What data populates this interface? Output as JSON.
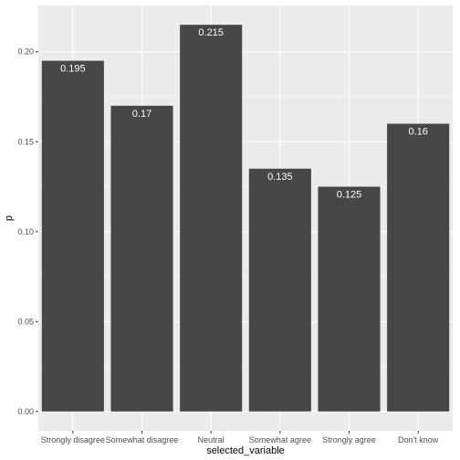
{
  "chart_data": {
    "type": "bar",
    "title": "",
    "xlabel": "selected_variable",
    "ylabel": "p",
    "categories": [
      "Strongly disagree",
      "Somewhat disagree",
      "Neutral",
      "Somewhat agree",
      "Strongly agree",
      "Don't know"
    ],
    "values": [
      0.195,
      0.17,
      0.215,
      0.135,
      0.125,
      0.16
    ],
    "data_labels": [
      "0.195",
      "0.17",
      "0.215",
      "0.135",
      "0.125",
      "0.16"
    ],
    "y_ticks": [
      0.0,
      0.05,
      0.1,
      0.15,
      0.2
    ],
    "y_tick_labels": [
      "0.00",
      "0.05",
      "0.10",
      "0.15",
      "0.20"
    ],
    "ylim": [
      -0.01075,
      0.22575
    ],
    "grid": true,
    "legend": "none",
    "colors": {
      "panel_background": "#ebebeb",
      "grid_major": "#ffffff",
      "bar_fill": "#474747",
      "label_text": "#ffffff"
    }
  }
}
